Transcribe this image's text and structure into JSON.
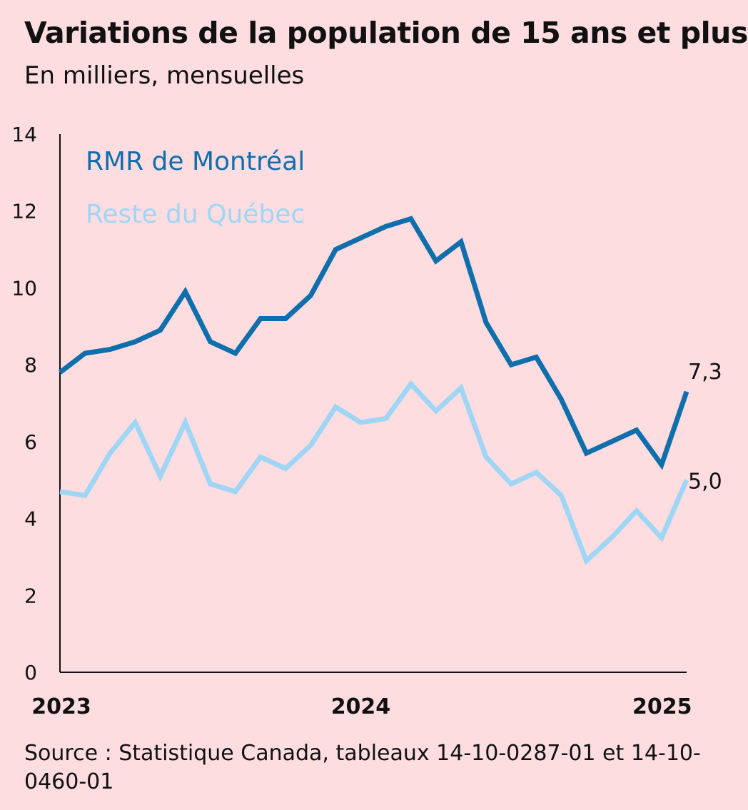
{
  "title": "Variations de la population de 15 ans et plus",
  "subtitle": "En milliers, mensuelles",
  "source": "Source : Statistique Canada, tableaux 14-10-0287-01 et 14-10-0460-01",
  "chart_data": {
    "type": "line",
    "ylim": [
      0,
      14
    ],
    "yticks": [
      "0",
      "2",
      "4",
      "6",
      "8",
      "10",
      "12",
      "14"
    ],
    "xticks": [
      "2023",
      "2024",
      "2025"
    ],
    "grid": false,
    "legend_position": "top-left",
    "x": [
      "2023-01",
      "2023-02",
      "2023-03",
      "2023-04",
      "2023-05",
      "2023-06",
      "2023-07",
      "2023-08",
      "2023-09",
      "2023-10",
      "2023-11",
      "2023-12",
      "2024-01",
      "2024-02",
      "2024-03",
      "2024-04",
      "2024-05",
      "2024-06",
      "2024-07",
      "2024-08",
      "2024-09",
      "2024-10",
      "2024-11",
      "2024-12",
      "2025-01",
      "2025-02"
    ],
    "series": [
      {
        "name": "RMR de Montréal",
        "color": "#0f6fad",
        "end_label": "7,3",
        "values": [
          7.8,
          8.3,
          8.4,
          8.6,
          8.9,
          9.9,
          8.6,
          8.3,
          9.2,
          9.2,
          9.8,
          11.0,
          11.3,
          11.6,
          11.8,
          10.7,
          11.2,
          9.1,
          8.0,
          8.2,
          7.1,
          5.7,
          6.0,
          6.3,
          5.4,
          7.3
        ]
      },
      {
        "name": "Reste du Québec",
        "color": "#9fd6f5",
        "end_label": "5,0",
        "values": [
          4.7,
          4.6,
          5.7,
          6.5,
          5.1,
          6.5,
          4.9,
          4.7,
          5.6,
          5.3,
          5.9,
          6.9,
          6.5,
          6.6,
          7.5,
          6.8,
          7.4,
          5.6,
          4.9,
          5.2,
          4.6,
          2.9,
          3.5,
          4.2,
          3.5,
          5.0
        ]
      }
    ]
  }
}
